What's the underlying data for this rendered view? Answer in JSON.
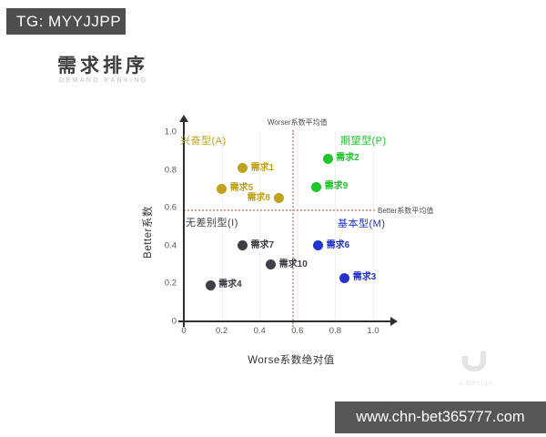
{
  "header": {
    "tag": "TG: MYYJJPP"
  },
  "title": {
    "main": "需求排序",
    "sub": "DEMAND RANKING"
  },
  "footer": {
    "url": "www.chn-bet365777.com"
  },
  "watermark": {
    "brand": "J-Design",
    "logo": "u-logo"
  },
  "colors": {
    "excitement": "#bfa11c",
    "expectation": "#1ec52b",
    "indifferent": "#3f3f46",
    "basic": "#2433d0",
    "avg_line": "#dca095",
    "axis": "#2f2f2f",
    "tag_bar_bg": "#4e4e4e",
    "url_bar_bg": "#565656"
  },
  "chart_data": {
    "type": "scatter",
    "xlabel": "Worse系数绝对值",
    "ylabel": "Better系数",
    "xlim": [
      0,
      1.0
    ],
    "ylim": [
      0,
      1.0
    ],
    "x_ticks": [
      "0",
      "0.2",
      "0.4",
      "0.6",
      "0.8",
      "1.0"
    ],
    "y_ticks": [
      "0",
      "0.2",
      "0.4",
      "0.6",
      "0.8",
      "1.0"
    ],
    "grid": "faint vertical gridlines at ticks",
    "quadrants": [
      {
        "key": "A",
        "label": "兴奋型(A)",
        "color": "#bfa11c",
        "position": "top-left"
      },
      {
        "key": "P",
        "label": "期望型(P)",
        "color": "#1ec52b",
        "position": "top-right"
      },
      {
        "key": "I",
        "label": "无差别型(I)",
        "color": "#3f3f46",
        "position": "bottom-left"
      },
      {
        "key": "M",
        "label": "基本型(M)",
        "color": "#2433d0",
        "position": "bottom-right"
      }
    ],
    "avg_lines": {
      "worse_x": 0.57,
      "worse_label": "Worser系数平均值",
      "better_y": 0.59,
      "better_label": "Better系数平均值"
    },
    "points": [
      {
        "label": "需求1",
        "x": 0.31,
        "y": 0.81,
        "category": "A",
        "label_side": "right"
      },
      {
        "label": "需求2",
        "x": 0.76,
        "y": 0.86,
        "category": "P",
        "label_side": "right"
      },
      {
        "label": "需求3",
        "x": 0.85,
        "y": 0.23,
        "category": "M",
        "label_side": "right"
      },
      {
        "label": "需求4",
        "x": 0.14,
        "y": 0.19,
        "category": "I",
        "label_side": "right"
      },
      {
        "label": "需求5",
        "x": 0.2,
        "y": 0.7,
        "category": "A",
        "label_side": "right"
      },
      {
        "label": "需求6",
        "x": 0.71,
        "y": 0.4,
        "category": "M",
        "label_side": "right"
      },
      {
        "label": "需求7",
        "x": 0.31,
        "y": 0.4,
        "category": "I",
        "label_side": "right"
      },
      {
        "label": "需求8",
        "x": 0.5,
        "y": 0.65,
        "category": "A",
        "label_side": "left"
      },
      {
        "label": "需求9",
        "x": 0.7,
        "y": 0.71,
        "category": "P",
        "label_side": "right"
      },
      {
        "label": "需求10",
        "x": 0.46,
        "y": 0.3,
        "category": "I",
        "label_side": "right"
      }
    ]
  }
}
